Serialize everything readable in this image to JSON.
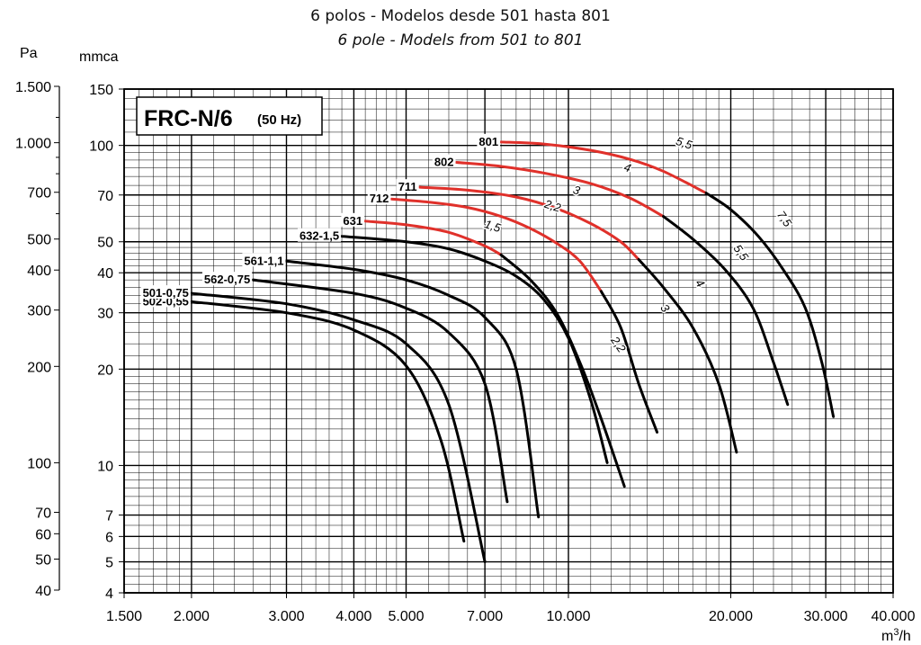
{
  "title": "6 polos - Modelos desde 501 hasta 801",
  "subtitle": "6 pole - Models from 501 to 801",
  "chart_data": {
    "type": "line",
    "x_scale": "log",
    "y_scale": "log",
    "chart_label": "FRC-N/6",
    "chart_label_freq": "(50 Hz)",
    "xlabel": "m³/h",
    "ylabel_left": "Pa",
    "ylabel_right": "mmca",
    "xlim": [
      1500,
      40000
    ],
    "ylim_mmca": [
      4,
      150
    ],
    "x_ticks": [
      {
        "v": 1500,
        "label": "1.500"
      },
      {
        "v": 2000,
        "label": "2.000"
      },
      {
        "v": 3000,
        "label": "3.000"
      },
      {
        "v": 4000,
        "label": "4.000"
      },
      {
        "v": 5000,
        "label": "5.000"
      },
      {
        "v": 7000,
        "label": "7.000"
      },
      {
        "v": 10000,
        "label": "10.000"
      },
      {
        "v": 20000,
        "label": "20.000"
      },
      {
        "v": 30000,
        "label": "30.000"
      },
      {
        "v": 40000,
        "label": "40.000"
      }
    ],
    "y_ticks_mmca": [
      {
        "v": 150,
        "label": "150"
      },
      {
        "v": 100,
        "label": "100"
      },
      {
        "v": 70,
        "label": "70"
      },
      {
        "v": 50,
        "label": "50"
      },
      {
        "v": 40,
        "label": "40"
      },
      {
        "v": 30,
        "label": "30"
      },
      {
        "v": 20,
        "label": "20"
      },
      {
        "v": 10,
        "label": "10"
      },
      {
        "v": 7,
        "label": "7"
      },
      {
        "v": 6,
        "label": "6"
      },
      {
        "v": 5,
        "label": "5"
      },
      {
        "v": 4,
        "label": "4"
      }
    ],
    "y_ticks_pa": [
      {
        "v": 1500,
        "label": "1.500"
      },
      {
        "v": 1000,
        "label": "1.000"
      },
      {
        "v": 700,
        "label": "700"
      },
      {
        "v": 500,
        "label": "500"
      },
      {
        "v": 400,
        "label": "400"
      },
      {
        "v": 300,
        "label": "300"
      },
      {
        "v": 200,
        "label": "200"
      },
      {
        "v": 100,
        "label": "100"
      },
      {
        "v": 70,
        "label": "70"
      },
      {
        "v": 60,
        "label": "60"
      },
      {
        "v": 50,
        "label": "50"
      },
      {
        "v": 40,
        "label": "40"
      }
    ],
    "grid": true,
    "line_color": "#000000",
    "highlight_color": "#e0302a",
    "series": [
      {
        "name": "502-0,55",
        "x": [
          2000,
          3000,
          4000,
          5000,
          5800,
          6400
        ],
        "y": [
          32.5,
          30,
          26.5,
          20.5,
          12,
          5.8
        ],
        "red_until": 0
      },
      {
        "name": "501-0,75",
        "x": [
          2000,
          3000,
          4000,
          5000,
          6000,
          7000
        ],
        "y": [
          34.5,
          32,
          28.5,
          24,
          15.5,
          5
        ]
      },
      {
        "name": "562-0,75",
        "x": [
          2600,
          4000,
          5000,
          6000,
          7000,
          7700
        ],
        "y": [
          38,
          34.5,
          31,
          26,
          18,
          7.7
        ]
      },
      {
        "name": "561-1,1",
        "x": [
          3000,
          4000,
          5000,
          6000,
          7000,
          8000,
          8800
        ],
        "y": [
          43.5,
          41,
          38,
          34,
          29,
          20,
          6.9
        ]
      },
      {
        "name": "632-1,5",
        "x": [
          3800,
          5000,
          6000,
          7000,
          8000,
          9000,
          10000,
          11000,
          11800
        ],
        "y": [
          52,
          50,
          47.5,
          43.5,
          39,
          33,
          25,
          16,
          10.2
        ]
      },
      {
        "name": "631",
        "x": [
          4200,
          5000,
          6000,
          7000,
          7500,
          8500,
          9500,
          10500,
          11500,
          12700
        ],
        "y": [
          58,
          56.5,
          53.5,
          48.5,
          45.5,
          38,
          30,
          21,
          14,
          8.6
        ],
        "red_until": 7500
      },
      {
        "name": "712",
        "x": [
          4700,
          5500,
          6500,
          7500,
          8500,
          9500,
          10500,
          11500,
          12500,
          13500,
          14600
        ],
        "y": [
          68,
          66.5,
          64,
          60,
          55,
          49.5,
          43.5,
          35,
          27,
          18,
          12.7
        ],
        "red_until": 11500
      },
      {
        "name": "711",
        "x": [
          5300,
          6500,
          8000,
          9500,
          11000,
          12500,
          13500,
          15000,
          17000,
          19000,
          20500
        ],
        "y": [
          74,
          72.5,
          69,
          63.5,
          57,
          50,
          44,
          36,
          27,
          18,
          11
        ],
        "red_until": 13500
      },
      {
        "name": "802",
        "x": [
          6200,
          7500,
          9000,
          11000,
          13000,
          15000,
          17000,
          19500,
          22000,
          24000,
          25500
        ],
        "y": [
          88.5,
          86,
          82,
          76,
          68.5,
          60,
          51,
          41,
          31,
          21,
          15.5
        ],
        "red_until": 15000
      },
      {
        "name": "801",
        "x": [
          7500,
          9000,
          11000,
          13000,
          15000,
          18000,
          20000,
          22500,
          25000,
          27500,
          29500,
          31000
        ],
        "y": [
          102.5,
          101,
          96.5,
          90.5,
          83,
          71,
          63,
          52,
          41,
          31,
          21,
          14.2
        ],
        "red_until": 18000
      }
    ],
    "power_labels": [
      {
        "text": "5,5",
        "x": 16300,
        "y": 99,
        "color": "red"
      },
      {
        "text": "4",
        "x": 12800,
        "y": 83,
        "color": "red"
      },
      {
        "text": "3",
        "x": 10300,
        "y": 70.5,
        "color": "red"
      },
      {
        "text": "2,2",
        "x": 9300,
        "y": 63,
        "color": "red"
      },
      {
        "text": "1,5",
        "x": 7200,
        "y": 54.5,
        "color": "red"
      },
      {
        "text": "7,5",
        "x": 24800,
        "y": 58,
        "color": "black"
      },
      {
        "text": "5,5",
        "x": 20600,
        "y": 45.5,
        "color": "black"
      },
      {
        "text": "4",
        "x": 17300,
        "y": 36.5,
        "color": "black"
      },
      {
        "text": "3",
        "x": 14900,
        "y": 30.5,
        "color": "black"
      },
      {
        "text": "2,2",
        "x": 12200,
        "y": 23.5,
        "color": "black"
      }
    ]
  }
}
